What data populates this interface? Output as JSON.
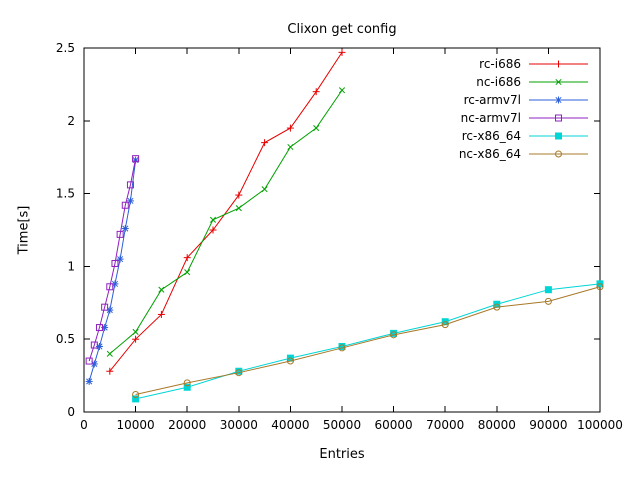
{
  "chart_data": {
    "type": "line",
    "title": "Clixon get config",
    "xlabel": "Entries",
    "ylabel": "Time[s]",
    "xlim": [
      0,
      100000
    ],
    "ylim": [
      0,
      2.5
    ],
    "xticks": [
      0,
      10000,
      20000,
      30000,
      40000,
      50000,
      60000,
      70000,
      80000,
      90000,
      100000
    ],
    "xtick_labels": [
      "0",
      "10000",
      "20000",
      "30000",
      "40000",
      "50000",
      "60000",
      "70000",
      "80000",
      "90000",
      "100000"
    ],
    "yticks": [
      0,
      0.5,
      1,
      1.5,
      2,
      2.5
    ],
    "ytick_labels": [
      "0",
      "0.5",
      "1",
      "1.5",
      "2",
      "2.5"
    ],
    "grid": false,
    "legend_position": "top-right-inside",
    "axis_color": "#000000",
    "series": [
      {
        "name": "rc-i686",
        "color": "#e60000",
        "marker": "plus",
        "x": [
          5000,
          10000,
          15000,
          20000,
          25000,
          30000,
          35000,
          40000,
          45000,
          50000
        ],
        "y": [
          0.28,
          0.5,
          0.67,
          1.06,
          1.25,
          1.49,
          1.85,
          1.95,
          2.2,
          2.47
        ]
      },
      {
        "name": "nc-i686",
        "color": "#00a000",
        "marker": "cross",
        "x": [
          5000,
          10000,
          15000,
          20000,
          25000,
          30000,
          35000,
          40000,
          45000,
          50000
        ],
        "y": [
          0.4,
          0.55,
          0.84,
          0.96,
          1.32,
          1.4,
          1.53,
          1.82,
          1.95,
          2.21
        ]
      },
      {
        "name": "rc-armv7l",
        "color": "#2b5fd9",
        "marker": "asterisk",
        "x": [
          1000,
          2000,
          3000,
          4000,
          5000,
          6000,
          7000,
          8000,
          9000,
          10000
        ],
        "y": [
          0.21,
          0.33,
          0.45,
          0.58,
          0.7,
          0.88,
          1.05,
          1.26,
          1.45,
          1.73
        ]
      },
      {
        "name": "nc-armv7l",
        "color": "#9020c0",
        "marker": "square-open",
        "x": [
          1000,
          2000,
          3000,
          4000,
          5000,
          6000,
          7000,
          8000,
          9000,
          10000
        ],
        "y": [
          0.35,
          0.46,
          0.58,
          0.72,
          0.86,
          1.02,
          1.22,
          1.42,
          1.56,
          1.74
        ]
      },
      {
        "name": "rc-x86_64",
        "color": "#00d5d5",
        "marker": "square-filled",
        "x": [
          10000,
          20000,
          30000,
          40000,
          50000,
          60000,
          70000,
          80000,
          90000,
          100000
        ],
        "y": [
          0.09,
          0.17,
          0.28,
          0.37,
          0.45,
          0.54,
          0.62,
          0.74,
          0.84,
          0.88
        ]
      },
      {
        "name": "nc-x86_64",
        "color": "#a87828",
        "marker": "circle-open",
        "x": [
          10000,
          20000,
          30000,
          40000,
          50000,
          60000,
          70000,
          80000,
          90000,
          100000
        ],
        "y": [
          0.12,
          0.2,
          0.27,
          0.35,
          0.44,
          0.53,
          0.6,
          0.72,
          0.76,
          0.86
        ]
      }
    ]
  }
}
